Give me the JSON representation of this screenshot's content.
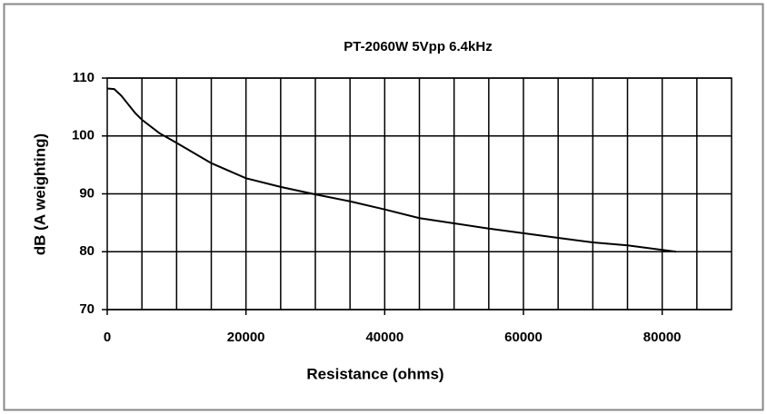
{
  "chart_data": {
    "type": "line",
    "title": "PT-2060W 5Vpp 6.4kHz",
    "x_label": "Resistance (ohms)",
    "y_label": "dB (A weighting)",
    "series": [
      {
        "name": "PT-2060W",
        "color": "#000000",
        "x": [
          0,
          1000,
          2000,
          3000,
          4000,
          5000,
          7500,
          10000,
          15000,
          20000,
          25000,
          30000,
          35000,
          40000,
          45000,
          50000,
          55000,
          60000,
          65000,
          70000,
          75000,
          82000
        ],
        "values": [
          108.2,
          108.1,
          107,
          105.5,
          104,
          102.8,
          100.5,
          98.8,
          95.3,
          92.7,
          91.2,
          89.9,
          88.7,
          87.3,
          85.8,
          84.9,
          84,
          83.2,
          82.4,
          81.6,
          81.1,
          80
        ]
      }
    ],
    "xlim": [
      0,
      90000
    ],
    "xticks": [
      0,
      20000,
      40000,
      60000,
      80000
    ],
    "xgrid": [
      5000,
      10000,
      15000,
      20000,
      25000,
      30000,
      35000,
      40000,
      45000,
      50000,
      55000,
      60000,
      65000,
      70000,
      75000,
      80000,
      85000
    ],
    "ylim": [
      70,
      110
    ],
    "yticks": [
      70,
      80,
      90,
      100,
      110
    ],
    "grid": true
  }
}
